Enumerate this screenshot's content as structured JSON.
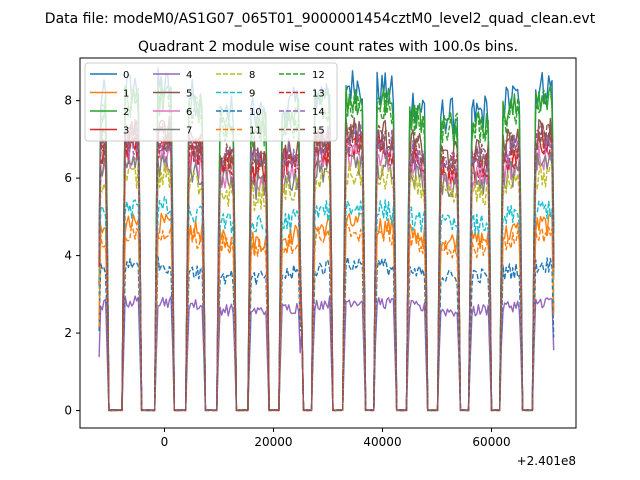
{
  "chart_data": {
    "type": "line",
    "suptitle": "Data file: modeM0/AS1G07_065T01_9000001454cztM0_level2_quad_clean.evt",
    "title": "Quadrant 2 module wise count rates with 100.0s bins.",
    "xlabel": "",
    "ylabel": "",
    "x_offset_label": "+2.401e8",
    "xlim": [
      -15500,
      75500
    ],
    "ylim": [
      -0.45,
      9.1
    ],
    "xticks": [
      0,
      20000,
      40000,
      60000
    ],
    "xtick_labels": [
      "0",
      "20000",
      "40000",
      "60000"
    ],
    "yticks": [
      0,
      2,
      4,
      6,
      8
    ],
    "ytick_labels": [
      "0",
      "2",
      "4",
      "6",
      "8"
    ],
    "grid": false,
    "legend_position": "top-left",
    "x_start": -12000,
    "x_end": 71500,
    "x_step": 300,
    "on_windows": [
      [
        -12000,
        -10500
      ],
      [
        -7600,
        -4300
      ],
      [
        -1700,
        1500
      ],
      [
        4000,
        7300
      ],
      [
        9700,
        13100
      ],
      [
        15500,
        19100
      ],
      [
        21300,
        24900
      ],
      [
        27100,
        30800
      ],
      [
        32900,
        36600
      ],
      [
        38700,
        42400
      ],
      [
        44500,
        48200
      ],
      [
        50200,
        54000
      ],
      [
        56000,
        59800
      ],
      [
        61800,
        65600
      ],
      [
        67600,
        71500
      ]
    ],
    "spike_windows": [
      [
        24800,
        25400
      ]
    ],
    "series": [
      {
        "name": "0",
        "color": "#1f77b4",
        "dash": "solid",
        "level": 8.0
      },
      {
        "name": "1",
        "color": "#ff7f0e",
        "dash": "solid",
        "level": 4.6
      },
      {
        "name": "2",
        "color": "#2ca02c",
        "dash": "solid",
        "level": 7.7
      },
      {
        "name": "3",
        "color": "#d62728",
        "dash": "solid",
        "level": 6.5
      },
      {
        "name": "4",
        "color": "#9467bd",
        "dash": "solid",
        "level": 2.7
      },
      {
        "name": "5",
        "color": "#8c564b",
        "dash": "solid",
        "level": 6.9
      },
      {
        "name": "6",
        "color": "#e377c2",
        "dash": "solid",
        "level": 6.3
      },
      {
        "name": "7",
        "color": "#7f7f7f",
        "dash": "solid",
        "level": 6.1
      },
      {
        "name": "8",
        "color": "#bcbd22",
        "dash": "dashed",
        "level": 5.8
      },
      {
        "name": "9",
        "color": "#17becf",
        "dash": "dashed",
        "level": 5.0
      },
      {
        "name": "10",
        "color": "#1f77b4",
        "dash": "dashed",
        "level": 3.6
      },
      {
        "name": "11",
        "color": "#ff7f0e",
        "dash": "dashed",
        "level": 4.4
      },
      {
        "name": "12",
        "color": "#2ca02c",
        "dash": "dashed",
        "level": 7.6
      },
      {
        "name": "13",
        "color": "#d62728",
        "dash": "dashed",
        "level": 6.6
      },
      {
        "name": "14",
        "color": "#9467bd",
        "dash": "dashed",
        "level": 6.7
      },
      {
        "name": "15",
        "color": "#8c564b",
        "dash": "dashed",
        "level": 6.8
      }
    ]
  }
}
